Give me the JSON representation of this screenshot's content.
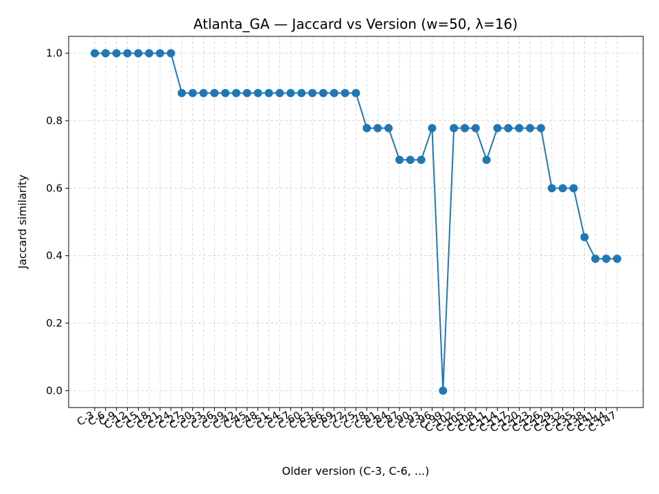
{
  "chart_data": {
    "type": "line",
    "title": "Atlanta_GA — Jaccard vs Version (w=50, λ=16)",
    "xlabel": "Older version (C-3, C-6, ...)",
    "ylabel": "Jaccard similarity",
    "ylim": [
      -0.05,
      1.05
    ],
    "yticks": [
      0.0,
      0.2,
      0.4,
      0.6,
      0.8,
      1.0
    ],
    "grid": true,
    "color": "#1f77b4",
    "categories": [
      "C-3",
      "C-6",
      "C-9",
      "C-12",
      "C-15",
      "C-18",
      "C-21",
      "C-24",
      "C-27",
      "C-30",
      "C-33",
      "C-36",
      "C-39",
      "C-42",
      "C-45",
      "C-48",
      "C-51",
      "C-54",
      "C-57",
      "C-60",
      "C-63",
      "C-66",
      "C-69",
      "C-72",
      "C-75",
      "C-78",
      "C-81",
      "C-84",
      "C-87",
      "C-90",
      "C-93",
      "C-96",
      "C-99",
      "C-102",
      "C-105",
      "C-108",
      "C-111",
      "C-114",
      "C-117",
      "C-120",
      "C-123",
      "C-126",
      "C-129",
      "C-132",
      "C-135",
      "C-138",
      "C-141",
      "C-144",
      "C-147"
    ],
    "values": [
      1.0,
      1.0,
      1.0,
      1.0,
      1.0,
      1.0,
      1.0,
      1.0,
      0.882,
      0.882,
      0.882,
      0.882,
      0.882,
      0.882,
      0.882,
      0.882,
      0.882,
      0.882,
      0.882,
      0.882,
      0.882,
      0.882,
      0.882,
      0.882,
      0.882,
      0.778,
      0.778,
      0.778,
      0.684,
      0.684,
      0.684,
      0.778,
      0.0,
      0.778,
      0.778,
      0.778,
      0.684,
      0.778,
      0.778,
      0.778,
      0.778,
      0.778,
      0.6,
      0.6,
      0.6,
      0.455,
      0.391,
      0.391,
      0.391
    ]
  }
}
